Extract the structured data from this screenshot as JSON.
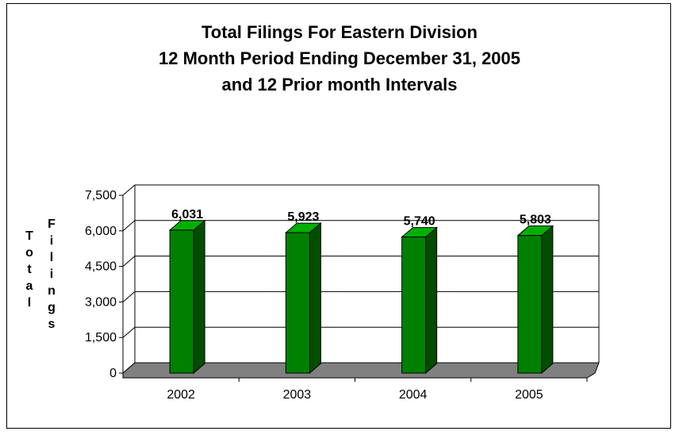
{
  "chart_data": {
    "type": "bar",
    "title_lines": [
      "Total Filings For Eastern Division",
      "12 Month Period Ending December 31, 2005",
      "and 12 Prior month Intervals"
    ],
    "ylabel_lines": [
      "Total",
      "Filings"
    ],
    "xlabel": "",
    "categories": [
      "2002",
      "2003",
      "2004",
      "2005"
    ],
    "values": [
      6031,
      5923,
      5740,
      5803
    ],
    "data_labels": [
      "6,031",
      "5,923",
      "5,740",
      "5,803"
    ],
    "yticks": [
      0,
      1500,
      3000,
      4500,
      6000,
      7500
    ],
    "ytick_labels": [
      "0",
      "1,500",
      "3,000",
      "4,500",
      "6,000",
      "7,500"
    ],
    "ylim": [
      0,
      7500
    ],
    "grid": true,
    "three_d": true,
    "colors": {
      "bar_front": "#008000",
      "bar_side": "#004d00",
      "bar_top": "#00b000",
      "floor": "#808080"
    }
  }
}
